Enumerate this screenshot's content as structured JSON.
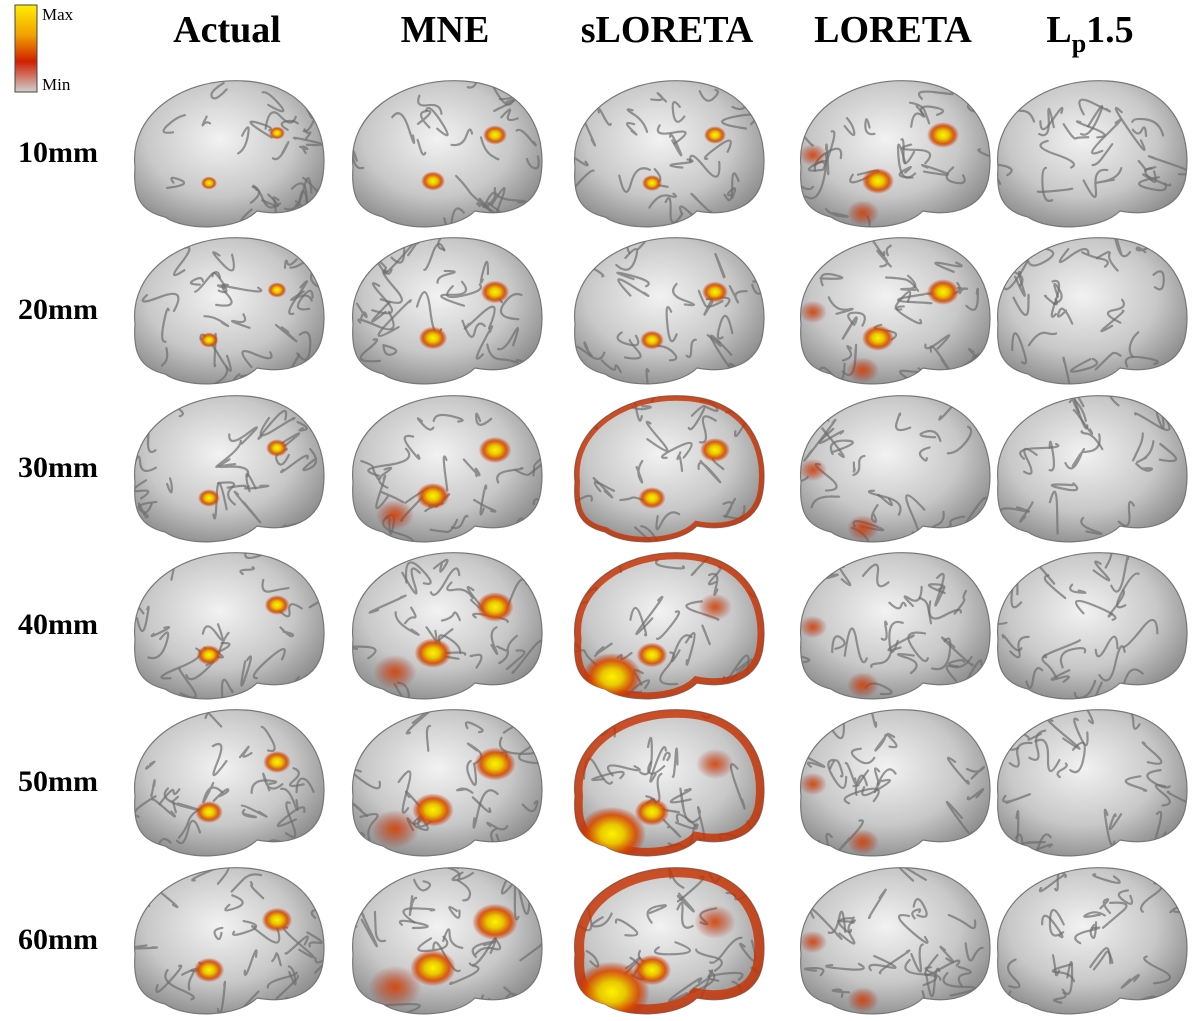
{
  "legend": {
    "max": "Max",
    "min": "Min"
  },
  "columns": [
    {
      "label": "Actual"
    },
    {
      "label": "MNE"
    },
    {
      "label": "sLORETA"
    },
    {
      "label": "LORETA"
    },
    {
      "label": "L",
      "sub": "p",
      "suffix": "1.5"
    }
  ],
  "rows": [
    "10mm",
    "20mm",
    "30mm",
    "40mm",
    "50mm",
    "60mm"
  ]
}
